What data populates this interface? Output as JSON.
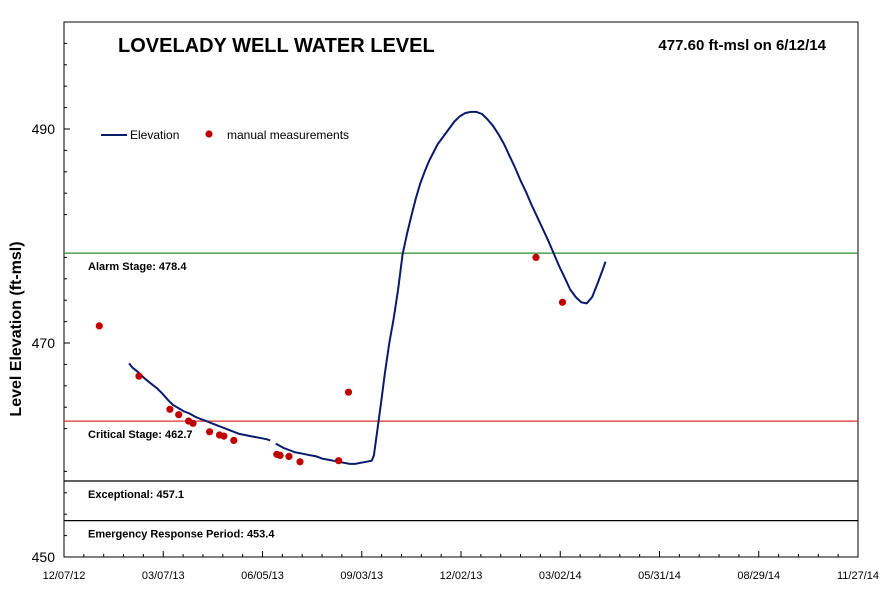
{
  "chart_data": {
    "type": "line",
    "title": "LOVELADY WELL WATER LEVEL",
    "subtitle": "477.60 ft-msl on 6/12/14",
    "ylabel": "Level Elevation  (ft-msl)",
    "xlabel": "",
    "ylim": [
      450,
      500
    ],
    "yticks": [
      {
        "value": 450,
        "label": "450"
      },
      {
        "value": 470,
        "label": "470"
      },
      {
        "value": 490,
        "label": "490"
      }
    ],
    "xlim": [
      "2012-12-07",
      "2014-11-27"
    ],
    "xticks": [
      {
        "date": "2012-12-07",
        "label": "12/07/12"
      },
      {
        "date": "2013-03-07",
        "label": "03/07/13"
      },
      {
        "date": "2013-06-05",
        "label": "06/05/13"
      },
      {
        "date": "2013-09-03",
        "label": "09/03/13"
      },
      {
        "date": "2013-12-02",
        "label": "12/02/13"
      },
      {
        "date": "2014-03-02",
        "label": "03/02/14"
      },
      {
        "date": "2014-05-31",
        "label": "05/31/14"
      },
      {
        "date": "2014-08-29",
        "label": "08/29/14"
      },
      {
        "date": "2014-11-27",
        "label": "11/27/14"
      }
    ],
    "legend": {
      "position": "top-left",
      "entries": [
        {
          "name": "Elevation",
          "kind": "line",
          "color": "#0a1a6b"
        },
        {
          "name": "manual measurements",
          "kind": "marker",
          "color": "#c00000"
        }
      ]
    },
    "thresholds": [
      {
        "name": "Alarm Stage",
        "label": "Alarm Stage: 478.4",
        "value": 478.4,
        "color": "#2e8b2e"
      },
      {
        "name": "Critical Stage",
        "label": "Critical Stage: 462.7",
        "value": 462.7,
        "color": "#e03030"
      },
      {
        "name": "Exceptional",
        "label": "Exceptional: 457.1",
        "value": 457.1,
        "color": "#000000"
      },
      {
        "name": "Emergency Response Period",
        "label": "Emergency Response Period: 453.4",
        "value": 453.4,
        "color": "#000000"
      }
    ],
    "series": [
      {
        "name": "Elevation",
        "type": "line",
        "color": "#0a1a6b",
        "segments": [
          [
            [
              0,
              468.1
            ],
            [
              3,
              467.7
            ],
            [
              8,
              467.3
            ],
            [
              14,
              466.7
            ],
            [
              20,
              466.2
            ],
            [
              25,
              465.8
            ],
            [
              30,
              465.3
            ],
            [
              35,
              464.7
            ],
            [
              40,
              464.2
            ],
            [
              45,
              463.9
            ],
            [
              50,
              463.6
            ],
            [
              55,
              463.4
            ],
            [
              60,
              463.1
            ],
            [
              65,
              462.9
            ],
            [
              70,
              462.7
            ],
            [
              75,
              462.5
            ],
            [
              80,
              462.3
            ],
            [
              85,
              462.1
            ],
            [
              90,
              461.9
            ],
            [
              95,
              461.7
            ],
            [
              100,
              461.5
            ],
            [
              105,
              461.4
            ],
            [
              110,
              461.3
            ],
            [
              115,
              461.2
            ],
            [
              120,
              461.1
            ],
            [
              125,
              461.0
            ],
            [
              128,
              460.9
            ]
          ],
          [
            [
              133,
              460.6
            ],
            [
              140,
              460.2
            ],
            [
              145,
              460.0
            ],
            [
              150,
              459.8
            ],
            [
              155,
              459.7
            ],
            [
              160,
              459.6
            ],
            [
              165,
              459.5
            ],
            [
              170,
              459.4
            ],
            [
              175,
              459.2
            ],
            [
              180,
              459.1
            ],
            [
              185,
              459.0
            ],
            [
              190,
              458.9
            ],
            [
              195,
              458.8
            ],
            [
              200,
              458.7
            ],
            [
              205,
              458.7
            ],
            [
              210,
              458.8
            ],
            [
              215,
              458.9
            ],
            [
              220,
              459.0
            ],
            [
              222,
              459.5
            ],
            [
              224,
              461.0
            ],
            [
              226,
              462.5
            ],
            [
              229,
              464.8
            ],
            [
              232,
              467.2
            ],
            [
              236,
              470.0
            ],
            [
              240,
              472.3
            ],
            [
              244,
              475.0
            ],
            [
              248,
              478.3
            ],
            [
              252,
              480.2
            ],
            [
              256,
              481.9
            ],
            [
              260,
              483.5
            ],
            [
              264,
              484.9
            ],
            [
              268,
              486.0
            ],
            [
              272,
              487.0
            ],
            [
              276,
              487.8
            ],
            [
              280,
              488.6
            ],
            [
              285,
              489.3
            ],
            [
              290,
              490.0
            ],
            [
              295,
              490.7
            ],
            [
              300,
              491.2
            ],
            [
              305,
              491.5
            ],
            [
              310,
              491.6
            ],
            [
              315,
              491.6
            ],
            [
              320,
              491.4
            ],
            [
              325,
              490.9
            ],
            [
              330,
              490.3
            ],
            [
              335,
              489.5
            ],
            [
              340,
              488.6
            ],
            [
              345,
              487.5
            ],
            [
              350,
              486.4
            ],
            [
              355,
              485.2
            ],
            [
              360,
              484.1
            ],
            [
              365,
              482.9
            ],
            [
              370,
              481.8
            ],
            [
              375,
              480.7
            ],
            [
              380,
              479.6
            ],
            [
              385,
              478.4
            ],
            [
              390,
              477.2
            ],
            [
              395,
              476.1
            ],
            [
              400,
              475.0
            ],
            [
              405,
              474.3
            ],
            [
              410,
              473.8
            ],
            [
              415,
              473.7
            ],
            [
              420,
              474.3
            ],
            [
              425,
              475.6
            ],
            [
              430,
              477.0
            ],
            [
              432,
              477.6
            ]
          ]
        ]
      },
      {
        "name": "manual measurements",
        "type": "scatter",
        "color": "#c00000",
        "points": [
          [
            -27,
            471.6
          ],
          [
            9,
            466.9
          ],
          [
            37,
            463.8
          ],
          [
            45,
            463.3
          ],
          [
            54,
            462.7
          ],
          [
            58,
            462.5
          ],
          [
            73,
            461.7
          ],
          [
            82,
            461.4
          ],
          [
            86,
            461.3
          ],
          [
            95,
            460.9
          ],
          [
            134,
            459.6
          ],
          [
            137,
            459.5
          ],
          [
            145,
            459.4
          ],
          [
            155,
            458.9
          ],
          [
            190,
            459.0
          ],
          [
            199,
            465.4
          ],
          [
            369,
            478.0
          ],
          [
            393,
            473.8
          ]
        ]
      }
    ]
  }
}
